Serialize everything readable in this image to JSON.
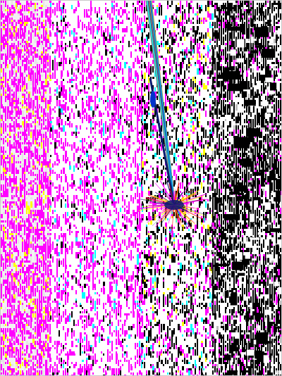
{
  "image": {
    "kind": "false-color pixel noise scan with a streak",
    "palette": {
      "background": "#ffffff",
      "light_gray": "#f2f2f2",
      "magenta": "#ff00ff",
      "black": "#000000",
      "cyan": "#00ffff",
      "yellow": "#ffff00",
      "red": "#ff0000",
      "blue": "#0033cc",
      "dark_blue": "#0a1a6e",
      "border": "#c8c8c8"
    },
    "regions": [
      {
        "name": "left-sparse-band",
        "dominant": "light_gray",
        "accent": "magenta"
      },
      {
        "name": "magenta-dense-band",
        "dominant": "magenta",
        "accent": "black"
      },
      {
        "name": "mixed-center-band",
        "dominant": "black",
        "accent": "magenta"
      },
      {
        "name": "right-dark-band",
        "dominant": "black",
        "accent": "light_gray"
      }
    ],
    "features": [
      {
        "name": "vertical-streak",
        "colors": [
          "blue",
          "cyan",
          "yellow",
          "red"
        ]
      },
      {
        "name": "starburst",
        "colors": [
          "dark_blue",
          "red",
          "yellow",
          "magenta"
        ]
      }
    ]
  }
}
